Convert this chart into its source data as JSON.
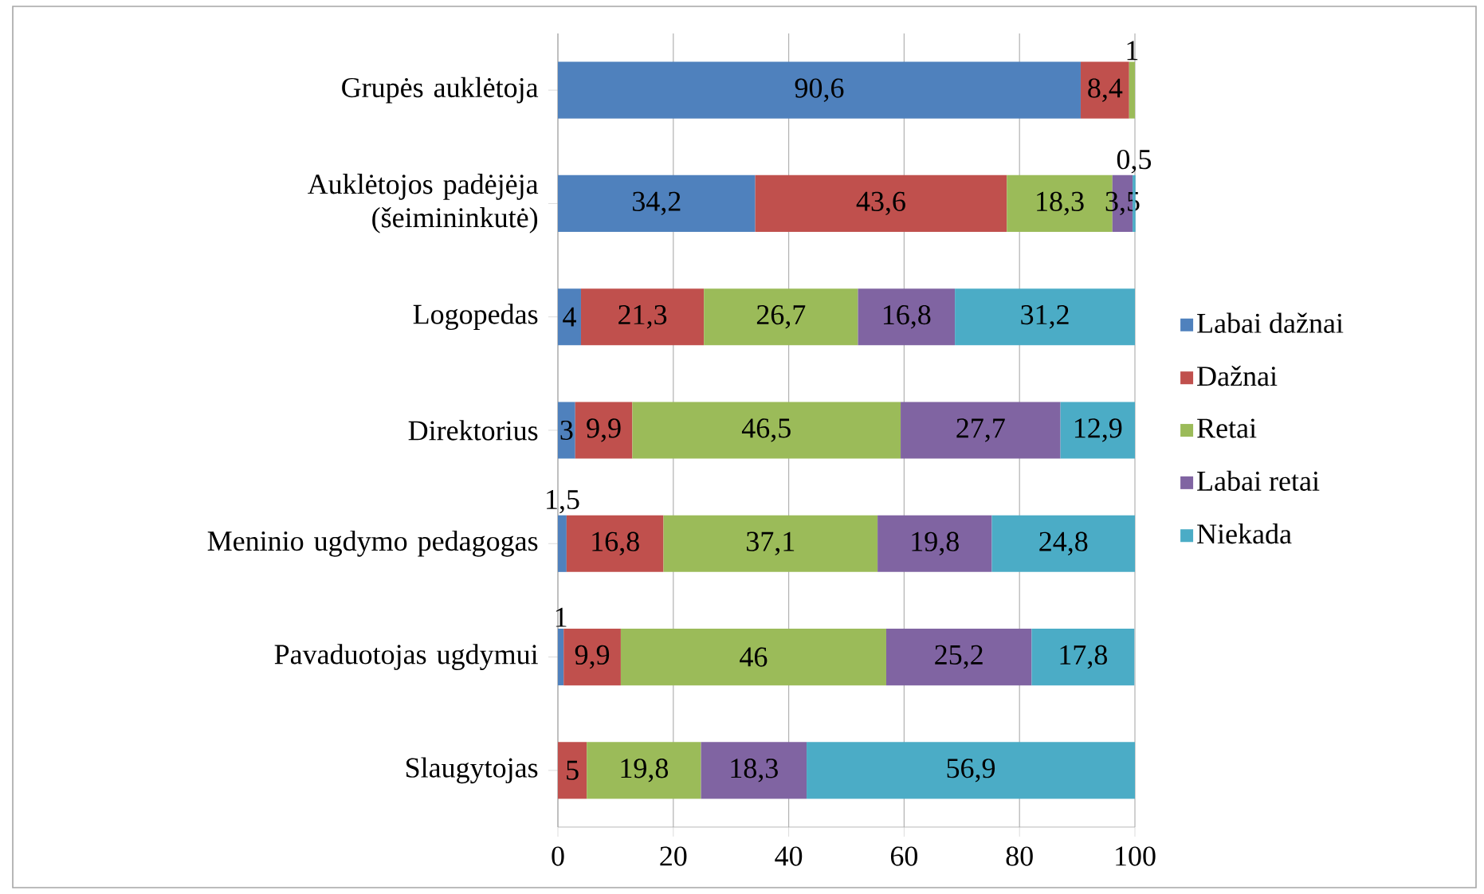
{
  "chart_data": {
    "type": "bar",
    "orientation": "horizontal",
    "stacked": true,
    "categories": [
      "Grupės auklėtoja",
      "Auklėtojos padėjėja (šeimininkutė)",
      "Logopedas",
      "Direktorius",
      "Meninio ugdymo pedagogas",
      "Pavaduotojas ugdymui",
      "Slaugytojas"
    ],
    "series": [
      {
        "name": "Labai dažnai",
        "color": "#4f81bd",
        "values": [
          90.6,
          34.2,
          4,
          3,
          1.5,
          1,
          null
        ],
        "value_labels": [
          "90,6",
          "34,2",
          "4",
          "3",
          "1,5",
          "1",
          null
        ]
      },
      {
        "name": "Dažnai",
        "color": "#c0504d",
        "values": [
          8.4,
          43.6,
          21.3,
          9.9,
          16.8,
          9.9,
          5
        ],
        "value_labels": [
          "8,4",
          "43,6",
          "21,3",
          "9,9",
          "16,8",
          "9,9",
          "5"
        ]
      },
      {
        "name": "Retai",
        "color": "#9bbb59",
        "values": [
          1,
          18.3,
          26.7,
          46.5,
          37.1,
          46,
          19.8
        ],
        "value_labels": [
          "1",
          "18,3",
          "26,7",
          "46,5",
          "37,1",
          "46",
          "19,8"
        ]
      },
      {
        "name": "Labai retai",
        "color": "#8064a2",
        "values": [
          null,
          3.5,
          16.8,
          27.7,
          19.8,
          25.2,
          18.3
        ],
        "value_labels": [
          null,
          "3,5",
          "16,8",
          "27,7",
          "19,8",
          "25,2",
          "18,3"
        ]
      },
      {
        "name": "Niekada",
        "color": "#4bacc6",
        "values": [
          null,
          0.5,
          31.2,
          12.9,
          24.8,
          17.8,
          56.9
        ],
        "value_labels": [
          null,
          "0,5",
          "31,2",
          "12,9",
          "24,8",
          "17,8",
          "56,9"
        ]
      }
    ],
    "xlim": [
      0,
      100
    ],
    "xticks": [
      0,
      20,
      40,
      60,
      80,
      100
    ],
    "grid": "x",
    "legend": "right"
  }
}
